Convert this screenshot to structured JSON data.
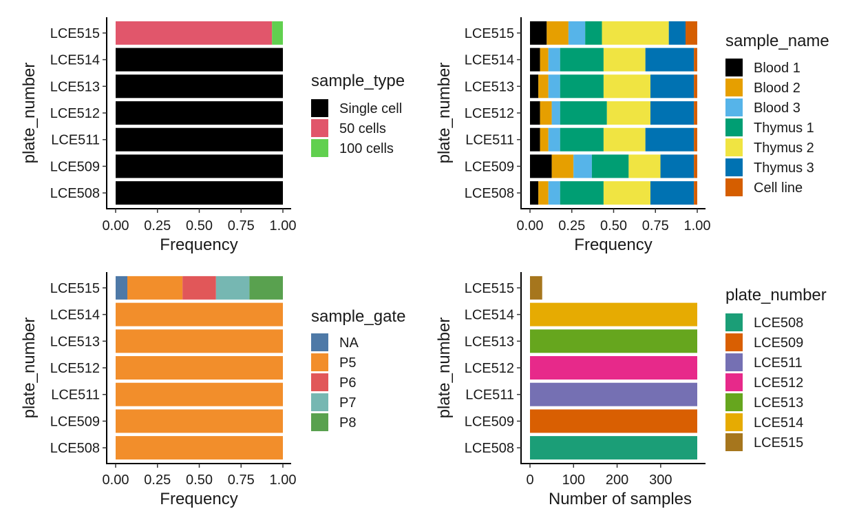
{
  "chart_data": [
    {
      "id": "sample-type-panel",
      "type": "bar",
      "orientation": "horizontal",
      "stacked": true,
      "categories": [
        "LCE515",
        "LCE514",
        "LCE513",
        "LCE512",
        "LCE511",
        "LCE509",
        "LCE508"
      ],
      "series": [
        {
          "name": "Single cell",
          "color": "#000000",
          "values": [
            0,
            1,
            1,
            1,
            1,
            1,
            1
          ]
        },
        {
          "name": "50 cells",
          "color": "#E1566B",
          "values": [
            0.935,
            0,
            0,
            0,
            0,
            0,
            0
          ]
        },
        {
          "name": "100 cells",
          "color": "#61D04F",
          "values": [
            0.065,
            0,
            0,
            0,
            0,
            0,
            0
          ]
        }
      ],
      "xlabel": "Frequency",
      "ylabel": "plate_number",
      "xlim": [
        0,
        1
      ],
      "xticks": [
        "0.00",
        "0.25",
        "0.50",
        "0.75",
        "1.00"
      ],
      "legend_title": "sample_type",
      "grid": false,
      "legend_position": "right"
    },
    {
      "id": "sample-name-panel",
      "type": "bar",
      "orientation": "horizontal",
      "stacked": true,
      "categories": [
        "LCE515",
        "LCE514",
        "LCE513",
        "LCE512",
        "LCE511",
        "LCE509",
        "LCE508"
      ],
      "series": [
        {
          "name": "Blood 1",
          "color": "#000000",
          "values": [
            0.1,
            0.06,
            0.05,
            0.06,
            0.06,
            0.13,
            0.05
          ]
        },
        {
          "name": "Blood 2",
          "color": "#E69F00",
          "values": [
            0.13,
            0.05,
            0.06,
            0.07,
            0.05,
            0.13,
            0.06
          ]
        },
        {
          "name": "Blood 3",
          "color": "#56B4E9",
          "values": [
            0.1,
            0.07,
            0.07,
            0.05,
            0.07,
            0.11,
            0.07
          ]
        },
        {
          "name": "Thymus 1",
          "color": "#009E73",
          "values": [
            0.1,
            0.26,
            0.26,
            0.28,
            0.26,
            0.22,
            0.26
          ]
        },
        {
          "name": "Thymus 2",
          "color": "#F0E442",
          "values": [
            0.4,
            0.25,
            0.28,
            0.26,
            0.25,
            0.19,
            0.28
          ]
        },
        {
          "name": "Thymus 3",
          "color": "#0072B2",
          "values": [
            0.1,
            0.29,
            0.26,
            0.26,
            0.29,
            0.2,
            0.26
          ]
        },
        {
          "name": "Cell line",
          "color": "#D55E00",
          "values": [
            0.07,
            0.02,
            0.02,
            0.02,
            0.02,
            0.02,
            0.02
          ]
        }
      ],
      "xlabel": "Frequency",
      "ylabel": "plate_number",
      "xlim": [
        0,
        1
      ],
      "xticks": [
        "0.00",
        "0.25",
        "0.50",
        "0.75",
        "1.00"
      ],
      "legend_title": "sample_name",
      "grid": false,
      "legend_position": "right"
    },
    {
      "id": "sample-gate-panel",
      "type": "bar",
      "orientation": "horizontal",
      "stacked": true,
      "categories": [
        "LCE515",
        "LCE514",
        "LCE513",
        "LCE512",
        "LCE511",
        "LCE509",
        "LCE508"
      ],
      "series": [
        {
          "name": "NA",
          "color": "#4E79A7",
          "values": [
            0.07,
            0,
            0,
            0,
            0,
            0,
            0
          ]
        },
        {
          "name": "P5",
          "color": "#F28E2B",
          "values": [
            0.33,
            1,
            1,
            1,
            1,
            1,
            1
          ]
        },
        {
          "name": "P6",
          "color": "#E15759",
          "values": [
            0.2,
            0,
            0,
            0,
            0,
            0,
            0
          ]
        },
        {
          "name": "P7",
          "color": "#76B7B2",
          "values": [
            0.2,
            0,
            0,
            0,
            0,
            0,
            0
          ]
        },
        {
          "name": "P8",
          "color": "#59A14F",
          "values": [
            0.2,
            0,
            0,
            0,
            0,
            0,
            0
          ]
        }
      ],
      "xlabel": "Frequency",
      "ylabel": "plate_number",
      "xlim": [
        0,
        1
      ],
      "xticks": [
        "0.00",
        "0.25",
        "0.50",
        "0.75",
        "1.00"
      ],
      "legend_title": "sample_gate",
      "grid": false,
      "legend_position": "right"
    },
    {
      "id": "sample-count-panel",
      "type": "bar",
      "orientation": "horizontal",
      "stacked": false,
      "categories": [
        "LCE515",
        "LCE514",
        "LCE513",
        "LCE512",
        "LCE511",
        "LCE509",
        "LCE508"
      ],
      "colors": [
        "#A6761D",
        "#E6AB02",
        "#66A61E",
        "#E7298A",
        "#7570B3",
        "#D95F02",
        "#1B9E77"
      ],
      "values": [
        28,
        384,
        384,
        384,
        384,
        384,
        384
      ],
      "xlabel": "Number of samples",
      "ylabel": "plate_number",
      "xlim": [
        -19,
        403
      ],
      "xticks": [
        0,
        100,
        200,
        300
      ],
      "legend_title": "plate_number",
      "legend": [
        {
          "name": "LCE508",
          "color": "#1B9E77"
        },
        {
          "name": "LCE509",
          "color": "#D95F02"
        },
        {
          "name": "LCE511",
          "color": "#7570B3"
        },
        {
          "name": "LCE512",
          "color": "#E7298A"
        },
        {
          "name": "LCE513",
          "color": "#66A61E"
        },
        {
          "name": "LCE514",
          "color": "#E6AB02"
        },
        {
          "name": "LCE515",
          "color": "#A6761D"
        }
      ],
      "grid": false,
      "legend_position": "right"
    }
  ]
}
